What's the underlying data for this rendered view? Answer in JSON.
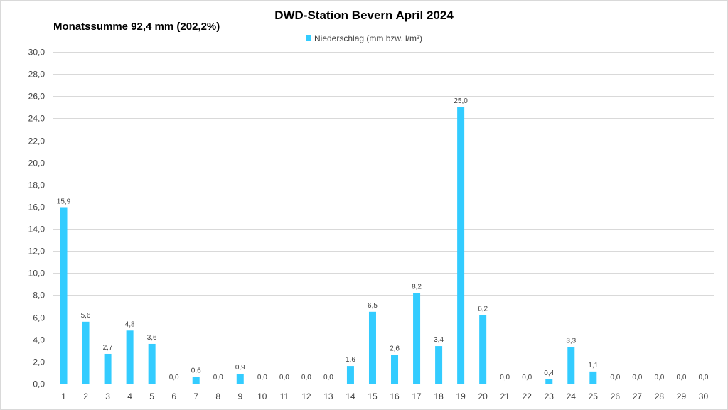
{
  "chart_data": {
    "type": "bar",
    "title": "DWD-Station  Bevern April 2024",
    "summary": "Monatssumme 92,4 mm (202,2%)",
    "legend": {
      "label": "Niederschlag (mm bzw. l/m²)",
      "placement": "top-center"
    },
    "categories": [
      "1",
      "2",
      "3",
      "4",
      "5",
      "6",
      "7",
      "8",
      "9",
      "10",
      "11",
      "12",
      "13",
      "14",
      "15",
      "16",
      "17",
      "18",
      "19",
      "20",
      "21",
      "22",
      "23",
      "24",
      "25",
      "26",
      "27",
      "28",
      "29",
      "30"
    ],
    "series": [
      {
        "name": "Niederschlag (mm bzw. l/m²)",
        "values": [
          15.9,
          5.6,
          2.7,
          4.8,
          3.6,
          0.0,
          0.6,
          0.0,
          0.9,
          0.0,
          0.0,
          0.0,
          0.0,
          1.6,
          6.5,
          2.6,
          8.2,
          3.4,
          25.0,
          6.2,
          0.0,
          0.0,
          0.4,
          3.3,
          1.1,
          0.0,
          0.0,
          0.0,
          0.0,
          0.0
        ],
        "labels": [
          "15,9",
          "5,6",
          "2,7",
          "4,8",
          "3,6",
          "0,0",
          "0,6",
          "0,0",
          "0,9",
          "0,0",
          "0,0",
          "0,0",
          "0,0",
          "1,6",
          "6,5",
          "2,6",
          "8,2",
          "3,4",
          "25,0",
          "6,2",
          "0,0",
          "0,0",
          "0,4",
          "3,3",
          "1,1",
          "0,0",
          "0,0",
          "0,0",
          "0,0",
          "0,0"
        ],
        "color": "#33CCFF"
      }
    ],
    "yticks": [
      0,
      2,
      4,
      6,
      8,
      10,
      12,
      14,
      16,
      18,
      20,
      22,
      24,
      26,
      28,
      30
    ],
    "ytick_labels": [
      "0,0",
      "2,0",
      "4,0",
      "6,0",
      "8,0",
      "10,0",
      "12,0",
      "14,0",
      "16,0",
      "18,0",
      "20,0",
      "22,0",
      "24,0",
      "26,0",
      "28,0",
      "30,0"
    ],
    "ylim": [
      0,
      30
    ],
    "grid": true,
    "xlabel": "",
    "ylabel": ""
  }
}
